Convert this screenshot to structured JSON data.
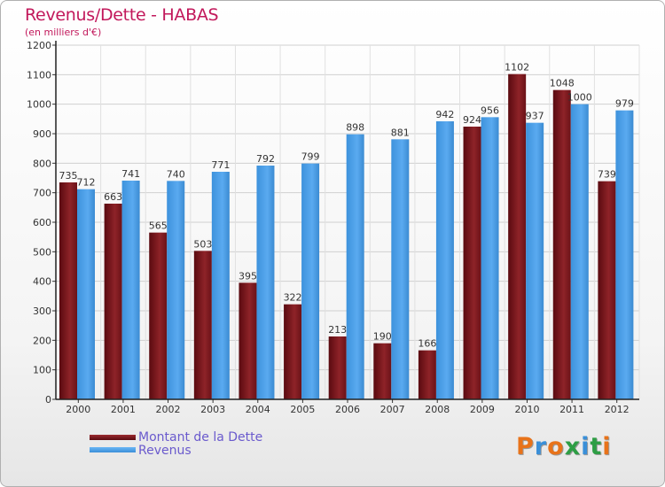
{
  "title": "Revenus/Dette - HABAS",
  "subtitle": "(en milliers d'€)",
  "logo_text": "Proxiti",
  "colors": {
    "dette": "#6b0f14",
    "dette_light": "#9b2b30",
    "revenus": "#3a8fd8",
    "revenus_light": "#5aaaf0",
    "title": "#c2185b",
    "legend_text": "#6a5acd"
  },
  "chart_data": {
    "type": "bar",
    "title": "Revenus/Dette - HABAS",
    "subtitle": "(en milliers d'€)",
    "xlabel": "",
    "ylabel": "",
    "ylim": [
      0,
      1200
    ],
    "yticks": [
      0,
      100,
      200,
      300,
      400,
      500,
      600,
      700,
      800,
      900,
      1000,
      1100,
      1200
    ],
    "grid": true,
    "legend_position": "bottom-left",
    "categories": [
      "2000",
      "2001",
      "2002",
      "2003",
      "2004",
      "2005",
      "2006",
      "2007",
      "2008",
      "2009",
      "2010",
      "2011",
      "2012"
    ],
    "series": [
      {
        "name": "Montant de la Dette",
        "values": [
          735,
          663,
          565,
          503,
          395,
          322,
          213,
          190,
          166,
          924,
          1102,
          1048,
          739
        ]
      },
      {
        "name": "Revenus",
        "values": [
          712,
          741,
          740,
          771,
          792,
          799,
          898,
          881,
          942,
          956,
          937,
          1000,
          979
        ]
      }
    ]
  }
}
